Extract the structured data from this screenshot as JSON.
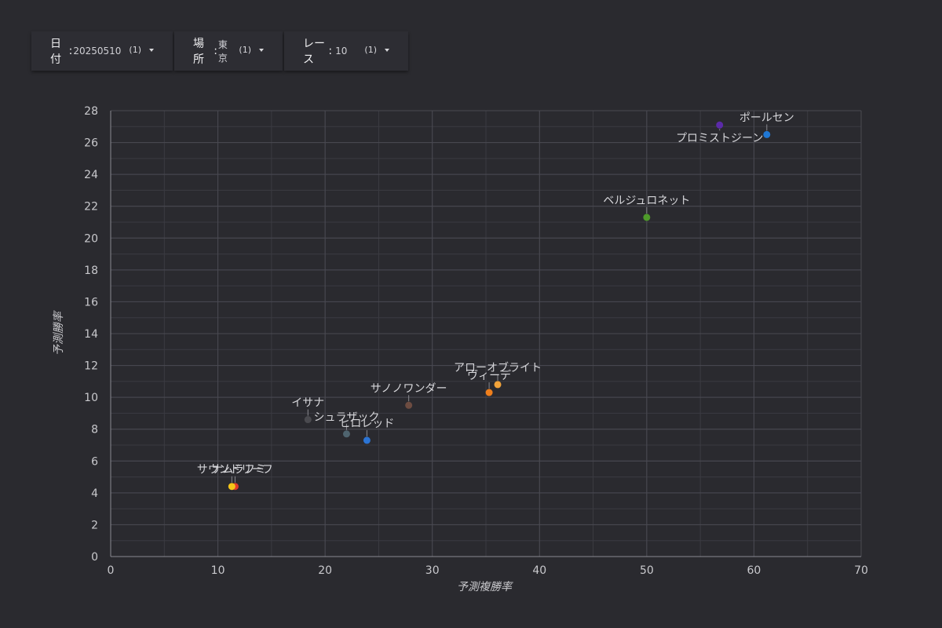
{
  "filters": [
    {
      "label": "日付",
      "value": "20250510",
      "count": "(1)"
    },
    {
      "label": "場所",
      "value": "東京",
      "count": "(1)"
    },
    {
      "label": "レース",
      "value": "10",
      "count": "(1)"
    }
  ],
  "chart_data": {
    "type": "scatter",
    "xlabel": "予測複勝率",
    "ylabel": "予測勝率",
    "xlim": [
      0,
      70
    ],
    "ylim": [
      0,
      28
    ],
    "xticks": [
      0,
      10,
      20,
      30,
      40,
      50,
      60,
      70
    ],
    "yticks": [
      0,
      2,
      4,
      6,
      8,
      10,
      12,
      14,
      16,
      18,
      20,
      22,
      24,
      26,
      28
    ],
    "grid": true,
    "points": [
      {
        "name": "ポールセン",
        "x": 61.2,
        "y": 26.5,
        "color": "#1f77d4"
      },
      {
        "name": "プロミストジーン",
        "x": 56.8,
        "y": 27.1,
        "color": "#5b2aa8"
      },
      {
        "name": "ベルジュロネット",
        "x": 50.0,
        "y": 21.3,
        "color": "#4e9a2a"
      },
      {
        "name": "アローオブライト",
        "x": 36.1,
        "y": 10.8,
        "color": "#f2a33a"
      },
      {
        "name": "ヴィーデ",
        "x": 35.3,
        "y": 10.3,
        "color": "#f07f1c"
      },
      {
        "name": "サノノワンダー",
        "x": 27.8,
        "y": 9.5,
        "color": "#6d4c41"
      },
      {
        "name": "イサナ",
        "x": 18.4,
        "y": 8.6,
        "color": "#4a4a4f"
      },
      {
        "name": "シュラザック",
        "x": 22.0,
        "y": 7.7,
        "color": "#4f646f"
      },
      {
        "name": "ヒロレッド",
        "x": 23.9,
        "y": 7.3,
        "color": "#2b74d4"
      },
      {
        "name": "ナムラフミ",
        "x": 11.6,
        "y": 4.4,
        "color": "#e03a2a"
      },
      {
        "name": "サウンドリーフ",
        "x": 11.3,
        "y": 4.4,
        "color": "#f5c518"
      }
    ]
  }
}
